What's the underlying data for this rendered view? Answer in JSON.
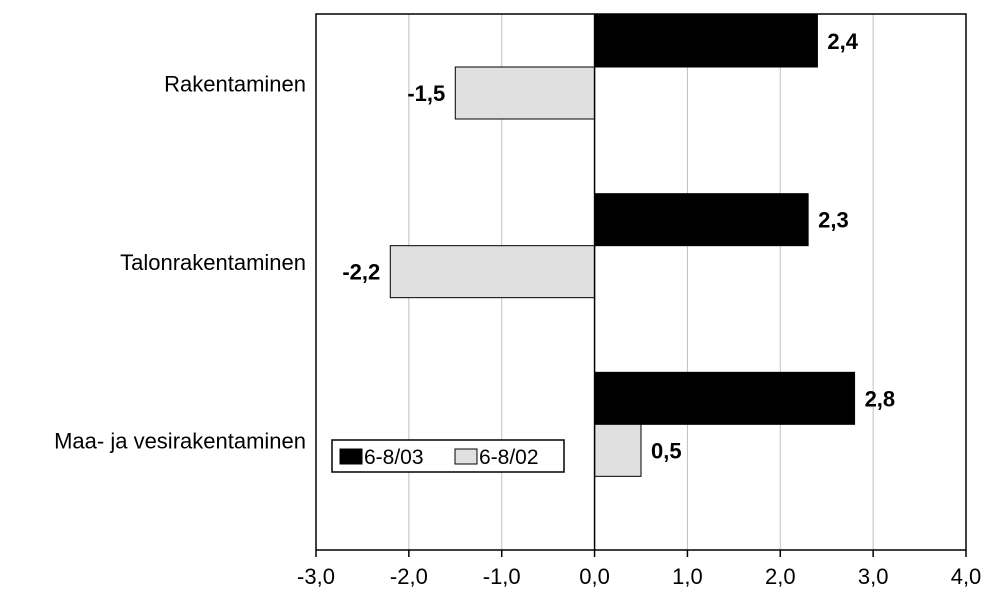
{
  "chart_data": {
    "type": "bar",
    "orientation": "horizontal",
    "categories": [
      "Rakentaminen",
      "Talonrakentaminen",
      "Maa- ja vesirakentaminen"
    ],
    "series": [
      {
        "name": "6-8/03",
        "values": [
          2.4,
          2.3,
          2.8
        ],
        "labels": [
          "2,4",
          "2,3",
          "2,8"
        ],
        "color": "#000000"
      },
      {
        "name": "6-8/02",
        "values": [
          -1.5,
          -2.2,
          0.5
        ],
        "labels": [
          "-1,5",
          "-2,2",
          "0,5"
        ],
        "color": "#e0e0e0"
      }
    ],
    "xlim": [
      -3.0,
      4.0
    ],
    "xticks": [
      -3.0,
      -2.0,
      -1.0,
      0.0,
      1.0,
      2.0,
      3.0,
      4.0
    ],
    "xtick_labels": [
      "-3,0",
      "-2,0",
      "-1,0",
      "0,0",
      "1,0",
      "2,0",
      "3,0",
      "4,0"
    ],
    "grid": "vertical",
    "legend_position": "bottom-left",
    "title": "",
    "xlabel": "",
    "ylabel": ""
  }
}
